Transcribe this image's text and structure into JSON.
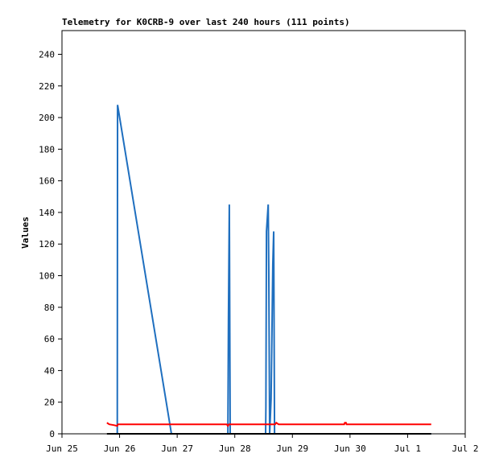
{
  "chart_data": {
    "type": "line",
    "title": "Telemetry for K0CRB-9 over last 240 hours (111 points)",
    "ylabel": "Values",
    "xlim": [
      0,
      7
    ],
    "xticks": [
      {
        "value": 0,
        "label": "Jun 25"
      },
      {
        "value": 1,
        "label": "Jun 26"
      },
      {
        "value": 2,
        "label": "Jun 27"
      },
      {
        "value": 3,
        "label": "Jun 28"
      },
      {
        "value": 4,
        "label": "Jun 29"
      },
      {
        "value": 5,
        "label": "Jun 30"
      },
      {
        "value": 6,
        "label": "Jul 1"
      },
      {
        "value": 7,
        "label": "Jul 2"
      }
    ],
    "ylim": [
      0,
      255
    ],
    "yticks": [
      0,
      20,
      40,
      60,
      80,
      100,
      120,
      140,
      160,
      180,
      200,
      220,
      240
    ],
    "series": [
      {
        "color": "#000000",
        "x": [
          0.78,
          6.41
        ],
        "values": [
          0,
          0
        ]
      },
      {
        "color": "#ff0000",
        "x": [
          0.78,
          0.82,
          0.9,
          0.96,
          0.97,
          2.86,
          2.88,
          2.9,
          3.7,
          3.72,
          3.76,
          4.9,
          4.91,
          4.93,
          4.94,
          6.41
        ],
        "values": [
          7,
          6,
          5.5,
          5,
          6,
          6,
          5,
          6,
          6,
          7,
          6,
          6,
          7,
          7,
          6,
          6
        ]
      },
      {
        "color": "#1f6fbf",
        "x": [
          0.96,
          0.965,
          1.9,
          2.88,
          2.89,
          2.905,
          2.92,
          3.535,
          3.54,
          3.55,
          3.58,
          3.59,
          3.605,
          3.63,
          3.645,
          3.66,
          3.675,
          3.69,
          6.41
        ],
        "values": [
          0,
          208,
          0,
          0,
          72,
          145,
          0,
          0,
          17,
          128,
          145,
          104,
          0,
          22,
          64,
          107,
          128,
          0,
          0
        ]
      }
    ]
  }
}
